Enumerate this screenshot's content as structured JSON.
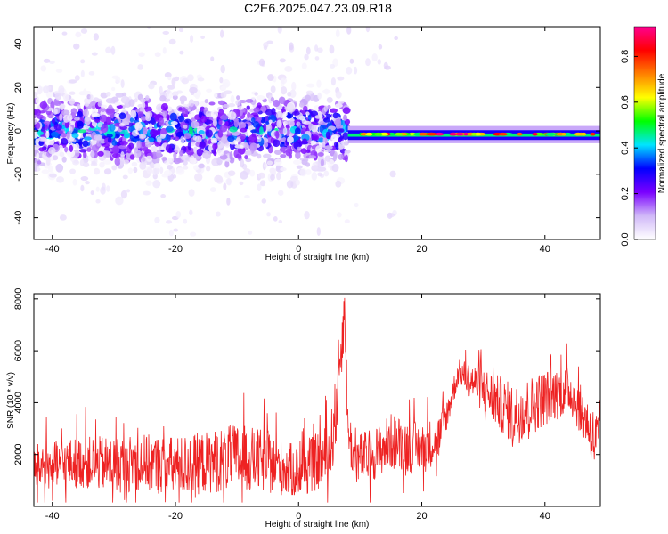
{
  "title": "C2E6.2025.047.23.09.R18",
  "chart_data": [
    {
      "type": "heatmap",
      "xlabel": "Height of straight line (km)",
      "ylabel": "Frequency (Hz)",
      "xlim": [
        -43,
        49
      ],
      "ylim": [
        -50,
        48
      ],
      "xticks": [
        -40,
        -20,
        0,
        20,
        40
      ],
      "yticks": [
        -40,
        -20,
        0,
        20,
        40
      ],
      "colorbar": {
        "label": "Normalized spectral amplitude",
        "range": [
          0,
          0.93
        ],
        "ticks": [
          0.0,
          0.2,
          0.4,
          0.6,
          0.8
        ],
        "colormap": [
          "#ffffff",
          "#d0b8f8",
          "#7a00ff",
          "#0000ff",
          "#00e5ff",
          "#00ff00",
          "#ffff00",
          "#ff8000",
          "#ff0000",
          "#ff0090"
        ]
      },
      "regions": [
        {
          "x_range": [
            -43,
            8
          ],
          "description_values": {
            "freq_center": 0,
            "freq_spread": 20,
            "amplitude": 0.15
          }
        },
        {
          "x_range": [
            8,
            49
          ],
          "description_values": {
            "freq_center": -1.5,
            "freq_spread": 3,
            "amplitude": 0.85
          }
        }
      ]
    },
    {
      "type": "line",
      "xlabel": "Height of straight line (km)",
      "ylabel": "SNR (10 * v/v)",
      "xlim": [
        -43,
        49
      ],
      "ylim": [
        0,
        8200
      ],
      "xticks": [
        -40,
        -20,
        0,
        20,
        40
      ],
      "yticks": [
        2000,
        4000,
        6000,
        8000
      ],
      "series": [
        {
          "color": "#ee2222",
          "envelope_x": [
            -43,
            -35,
            -30,
            -25,
            -20,
            -15,
            -10,
            -5,
            0,
            5,
            6,
            7,
            7.5,
            8,
            9,
            12,
            15,
            20,
            23,
            24,
            26,
            30,
            35,
            40,
            44,
            47,
            48,
            49
          ],
          "envelope_mean": [
            1500,
            1700,
            1600,
            1700,
            1500,
            1700,
            1900,
            1700,
            1300,
            2000,
            3500,
            6500,
            7500,
            3000,
            1800,
            2000,
            2500,
            2200,
            2700,
            3500,
            5200,
            4500,
            3500,
            4200,
            4500,
            3200,
            2500,
            2500
          ],
          "envelope_amp": [
            900,
            1000,
            1100,
            1100,
            1200,
            1200,
            1300,
            1200,
            1000,
            1200,
            1500,
            1500,
            1000,
            1000,
            1000,
            1000,
            1100,
            1000,
            900,
            600,
            500,
            900,
            1200,
            1100,
            900,
            1000,
            1300,
            1300
          ]
        }
      ]
    }
  ]
}
